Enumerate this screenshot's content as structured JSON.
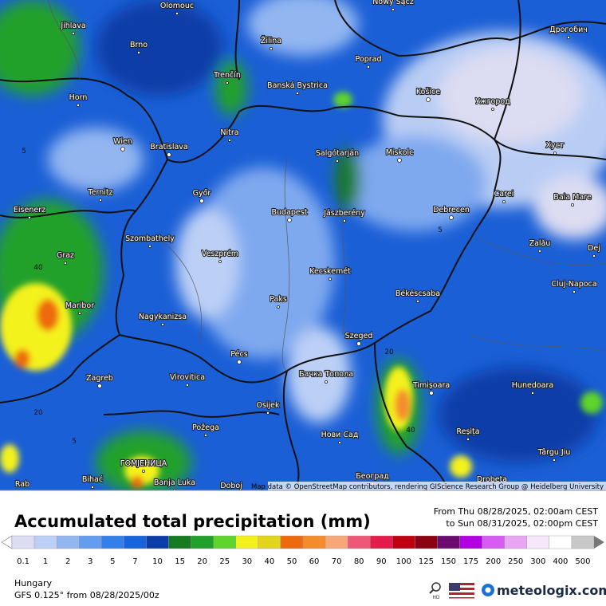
{
  "map": {
    "cities": [
      "Olomouc",
      "Nowy Sącz",
      "Jihlava",
      "Brno",
      "Žilina",
      "Poprad",
      "Дрогобич",
      "Trenčín",
      "Banská Bystrica",
      "Horn",
      "Košice",
      "Ужгород",
      "Nitra",
      "Wien",
      "Bratislava",
      "Salgótarján",
      "Miskolc",
      "Хуст",
      "Ternitz",
      "Győr",
      "Carei",
      "Baia Mare",
      "Eisenerz",
      "Budapest",
      "Jászberény",
      "Debrecen",
      "Szombathely",
      "Graz",
      "Veszprém",
      "Zalău",
      "Dej",
      "Kecskemét",
      "Cluj-Napoca",
      "Maribor",
      "Paks",
      "Békéscsaba",
      "Nagykanizsa",
      "Szeged",
      "Pécs",
      "Virovitica",
      "Zagreb",
      "Бачка Топола",
      "Timișoara",
      "Hunedoara",
      "Osijek",
      "Požega",
      "Нови Сад",
      "Reșița",
      "Târgu Jiu",
      "ГОМЈЕНИЦА",
      "Banja Luka",
      "Bihać",
      "Doboj",
      "Београд",
      "Drobeta",
      "Rab"
    ],
    "contour_labels": [
      "5",
      "5",
      "40",
      "20",
      "5",
      "40",
      "20"
    ],
    "attribution": "Map data © OpenStreetMap contributors, rendering GIScience Research Group @ Heidelberg University"
  },
  "panel": {
    "title": "Accumulated total precipitation (mm)",
    "from": "From Thu 08/28/2025, 02:00am CEST",
    "to": "to Sun 08/31/2025, 02:00pm CEST",
    "region": "Hungary",
    "model": "GFS 0.125° from  08/28/2025/00z",
    "brand": "meteologix.com"
  },
  "legend": {
    "labels": [
      0.1,
      1,
      2,
      3,
      5,
      7,
      10,
      15,
      20,
      25,
      30,
      40,
      50,
      60,
      70,
      80,
      90,
      100,
      125,
      150,
      175,
      200,
      250,
      300,
      400,
      500
    ],
    "colors": [
      "#dcdcf2",
      "#bcd0f6",
      "#93b6f1",
      "#649df0",
      "#3380ea",
      "#1763de",
      "#0d3ea8",
      "#157a22",
      "#22a12c",
      "#5fd42c",
      "#f4f21e",
      "#e2d51b",
      "#ee6a0e",
      "#f58c2c",
      "#f8a878",
      "#f0587a",
      "#e41c4c",
      "#c00012",
      "#8a0012",
      "#6c0c70",
      "#b200e2",
      "#d65cf2",
      "#e9a6f3",
      "#f6e6f9",
      "#ffffff",
      "#c8c8c8"
    ]
  }
}
